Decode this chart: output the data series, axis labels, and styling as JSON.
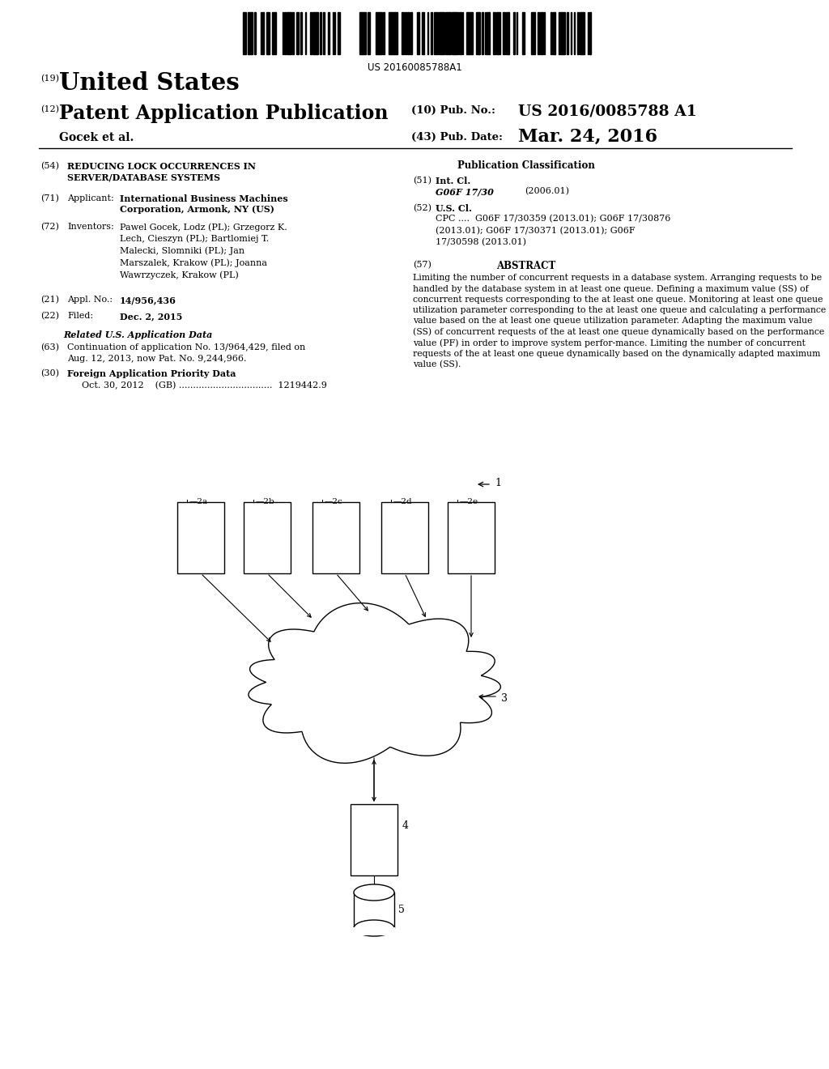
{
  "bg_color": "#ffffff",
  "barcode_text": "US 20160085788A1",
  "title_19": "(19)",
  "title_country": "United States",
  "title_12": "(12)",
  "title_type": "Patent Application Publication",
  "title_10": "(10) Pub. No.:",
  "pub_no": "US 2016/0085788 A1",
  "applicant_name": "Gocek et al.",
  "title_43": "(43) Pub. Date:",
  "pub_date": "Mar. 24, 2016",
  "field_54_num": "(54)",
  "field_54_title_line1": "REDUCING LOCK OCCURRENCES IN",
  "field_54_title_line2": "SERVER/DATABASE SYSTEMS",
  "field_71_num": "(71)",
  "field_71_label": "Applicant:",
  "field_71_value_line1": "International Business Machines",
  "field_71_value_line2": "Corporation, Armonk, NY (US)",
  "field_72_num": "(72)",
  "field_72_label": "Inventors:",
  "field_72_value": "Pawel Gocek, Lodz (PL); Grzegorz K.\nLech, Cieszyn (PL); Bartlomiej T.\nMalecki, Slomniki (PL); Jan\nMarszalek, Krakow (PL); Joanna\nWawrzyczek, Krakow (PL)",
  "field_21_num": "(21)",
  "field_21_label": "Appl. No.:",
  "field_21_value": "14/956,436",
  "field_22_num": "(22)",
  "field_22_label": "Filed:",
  "field_22_value": "Dec. 2, 2015",
  "related_header": "Related U.S. Application Data",
  "field_63_num": "(63)",
  "field_63_value": "Continuation of application No. 13/964,429, filed on\nAug. 12, 2013, now Pat. No. 9,244,966.",
  "field_30_num": "(30)",
  "field_30_header": "Foreign Application Priority Data",
  "field_30_value": "Oct. 30, 2012    (GB) .................................  1219442.9",
  "pub_class_header": "Publication Classification",
  "field_51_num": "(51)",
  "field_51_label": "Int. Cl.",
  "field_51_value": "G06F 17/30",
  "field_51_year": "(2006.01)",
  "field_52_num": "(52)",
  "field_52_label": "U.S. Cl.",
  "field_52_cpc": "CPC ....  G06F 17/30359 (2013.01); G06F 17/30876\n(2013.01); G06F 17/30371 (2013.01); G06F\n17/30598 (2013.01)",
  "field_57_num": "(57)",
  "field_57_label": "ABSTRACT",
  "field_57_value": "Limiting the number of concurrent requests in a database system. Arranging requests to be handled by the database system in at least one queue. Defining a maximum value (SS) of concurrent requests corresponding to the at least one queue. Monitoring at least one queue utilization parameter corresponding to the at least one queue and calculating a performance value based on the at least one queue utilization parameter. Adapting the maximum value (SS) of concurrent requests of the at least one queue dynamically based on the performance value (PF) in order to improve system perfor-mance. Limiting the number of concurrent requests of the at least one queue dynamically based on the dynamically adapted maximum value (SS).",
  "diagram_label_1": "1",
  "diagram_labels_top": [
    "2a",
    "2b",
    "2c",
    "2d",
    "2e"
  ],
  "diagram_label_3": "3",
  "diagram_label_4": "4",
  "diagram_label_5": "5"
}
